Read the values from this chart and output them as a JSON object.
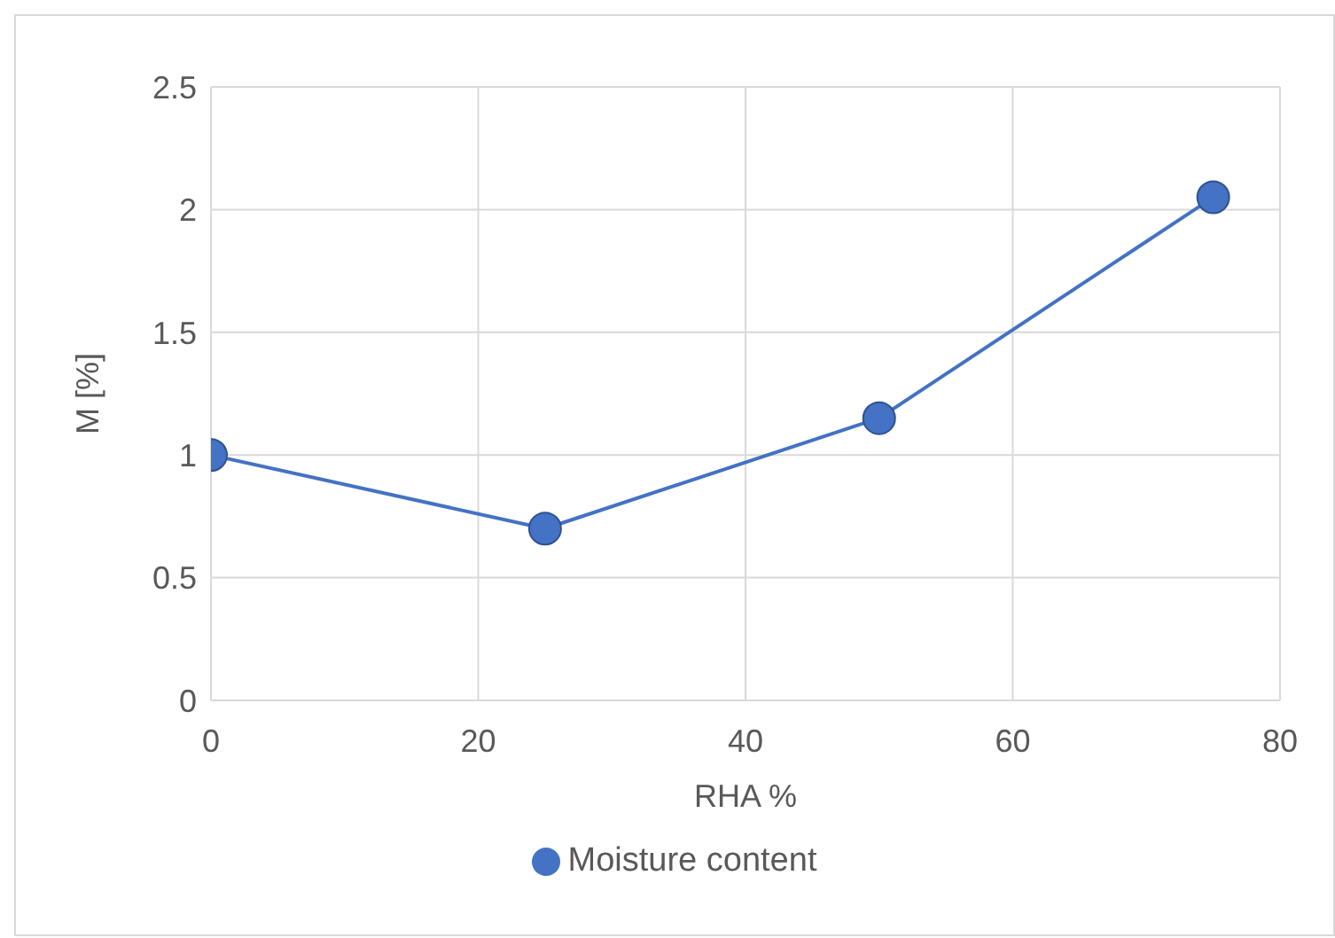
{
  "chart_data": {
    "type": "line",
    "xlabel": "RHA %",
    "ylabel": "M [%]",
    "x": [
      0,
      25,
      50,
      75
    ],
    "series": [
      {
        "name": "Moisture content",
        "color": "#4472c4",
        "values": [
          1,
          0.7,
          1.15,
          2.05
        ]
      }
    ],
    "xlim": [
      0,
      80
    ],
    "xticks": [
      0,
      20,
      40,
      60,
      80
    ],
    "ylim": [
      0,
      2.5
    ],
    "yticks": [
      0,
      0.5,
      1,
      1.5,
      2,
      2.5
    ],
    "grid": true,
    "legend": "bottom",
    "marker": "circle",
    "line_style": "solid"
  }
}
